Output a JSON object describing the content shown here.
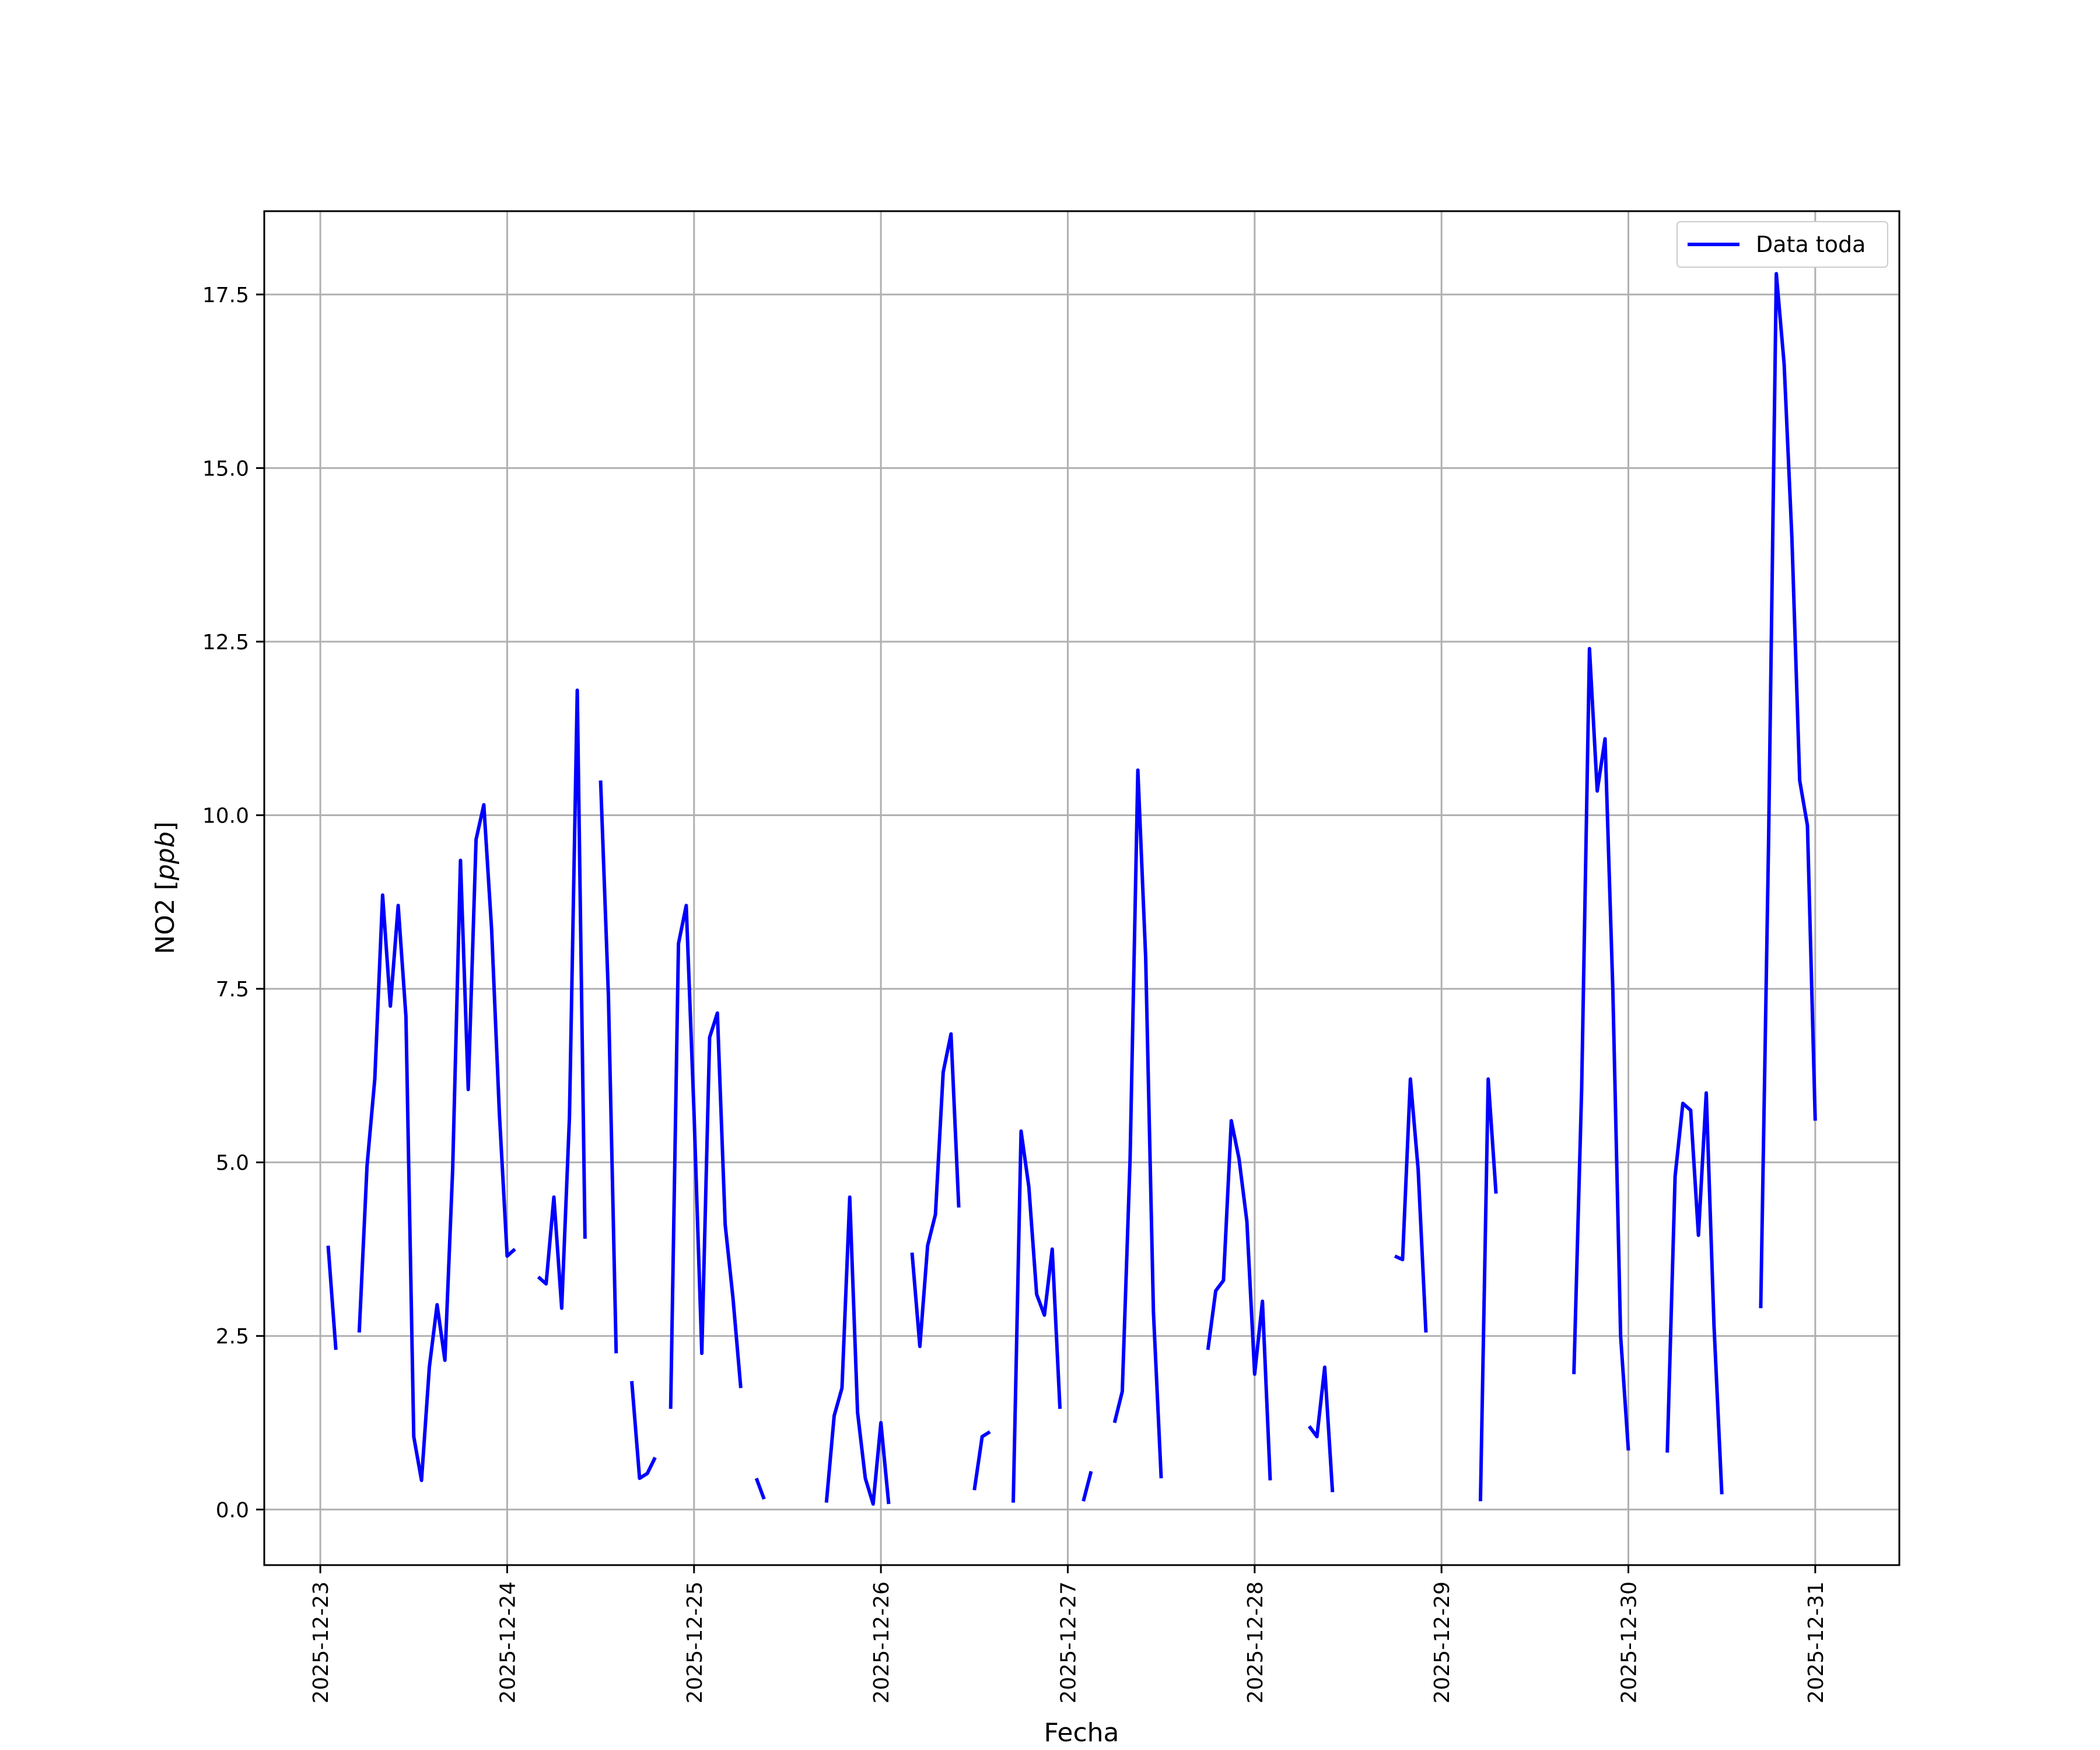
{
  "chart_data": {
    "type": "line",
    "title": "",
    "xlabel": "Fecha",
    "ylabel": "NO2 [ppb]",
    "ylabel_parts": {
      "prefix": "NO2 [",
      "unit": "ppb",
      "suffix": "]"
    },
    "ylim": [
      -0.8,
      18.7
    ],
    "xlim": [
      "2025-12-22 16:48",
      "2025-12-31 10:48"
    ],
    "grid": true,
    "legend_position": "top-right",
    "x_ticks": [
      "2025-12-23",
      "2025-12-24",
      "2025-12-25",
      "2025-12-26",
      "2025-12-27",
      "2025-12-28",
      "2025-12-29",
      "2025-12-30",
      "2025-12-31"
    ],
    "y_ticks": [
      0.0,
      2.5,
      5.0,
      7.5,
      10.0,
      12.5,
      15.0,
      17.5
    ],
    "y_tick_labels": [
      "0.0",
      "2.5",
      "5.0",
      "7.5",
      "10.0",
      "12.5",
      "15.0",
      "17.5"
    ],
    "series": [
      {
        "name": "Data toda",
        "color": "#0000ff",
        "points": [
          [
            "2025-12-23 01:00",
            3.8
          ],
          [
            "2025-12-23 02:00",
            2.3
          ],
          [
            "2025-12-23 03:00",
            null
          ],
          [
            "2025-12-23 05:00",
            2.55
          ],
          [
            "2025-12-23 06:00",
            4.95
          ],
          [
            "2025-12-23 07:00",
            6.2
          ],
          [
            "2025-12-23 08:00",
            8.85
          ],
          [
            "2025-12-23 09:00",
            7.25
          ],
          [
            "2025-12-23 10:00",
            8.7
          ],
          [
            "2025-12-23 11:00",
            7.1
          ],
          [
            "2025-12-23 12:00",
            1.05
          ],
          [
            "2025-12-23 13:00",
            0.42
          ],
          [
            "2025-12-23 14:00",
            2.05
          ],
          [
            "2025-12-23 15:00",
            2.95
          ],
          [
            "2025-12-23 16:00",
            2.15
          ],
          [
            "2025-12-23 17:00",
            4.9
          ],
          [
            "2025-12-23 18:00",
            9.35
          ],
          [
            "2025-12-23 19:00",
            6.05
          ],
          [
            "2025-12-23 20:00",
            9.65
          ],
          [
            "2025-12-23 21:00",
            10.15
          ],
          [
            "2025-12-23 22:00",
            8.35
          ],
          [
            "2025-12-23 23:00",
            5.7
          ],
          [
            "2025-12-24 00:00",
            3.65
          ],
          [
            "2025-12-24 01:00",
            3.75
          ],
          [
            "2025-12-24 02:00",
            null
          ],
          [
            "2025-12-24 04:00",
            3.35
          ],
          [
            "2025-12-24 05:00",
            3.25
          ],
          [
            "2025-12-24 06:00",
            4.5
          ],
          [
            "2025-12-24 07:00",
            2.9
          ],
          [
            "2025-12-24 08:00",
            5.65
          ],
          [
            "2025-12-24 09:00",
            11.8
          ],
          [
            "2025-12-24 10:00",
            3.9
          ],
          [
            "2025-12-24 11:00",
            null
          ],
          [
            "2025-12-24 12:00",
            10.5
          ],
          [
            "2025-12-24 13:00",
            7.4
          ],
          [
            "2025-12-24 14:00",
            2.25
          ],
          [
            "2025-12-24 15:00",
            null
          ],
          [
            "2025-12-24 16:00",
            1.85
          ],
          [
            "2025-12-24 17:00",
            0.45
          ],
          [
            "2025-12-24 18:00",
            0.52
          ],
          [
            "2025-12-24 19:00",
            0.75
          ],
          [
            "2025-12-24 20:00",
            null
          ],
          [
            "2025-12-24 21:00",
            1.45
          ],
          [
            "2025-12-24 22:00",
            8.15
          ],
          [
            "2025-12-24 23:00",
            8.7
          ],
          [
            "2025-12-25 00:00",
            5.7
          ],
          [
            "2025-12-25 01:00",
            2.25
          ],
          [
            "2025-12-25 02:00",
            6.8
          ],
          [
            "2025-12-25 03:00",
            7.15
          ],
          [
            "2025-12-25 04:00",
            4.1
          ],
          [
            "2025-12-25 05:00",
            3.05
          ],
          [
            "2025-12-25 06:00",
            1.75
          ],
          [
            "2025-12-25 07:00",
            null
          ],
          [
            "2025-12-25 08:00",
            0.45
          ],
          [
            "2025-12-25 09:00",
            0.15
          ],
          [
            "2025-12-25 10:00",
            null
          ],
          [
            "2025-12-25 17:00",
            0.1
          ],
          [
            "2025-12-25 18:00",
            1.35
          ],
          [
            "2025-12-25 19:00",
            1.75
          ],
          [
            "2025-12-25 20:00",
            4.5
          ],
          [
            "2025-12-25 21:00",
            1.4
          ],
          [
            "2025-12-25 22:00",
            0.45
          ],
          [
            "2025-12-25 23:00",
            0.08
          ],
          [
            "2025-12-26 00:00",
            1.25
          ],
          [
            "2025-12-26 01:00",
            0.08
          ],
          [
            "2025-12-26 02:00",
            null
          ],
          [
            "2025-12-26 04:00",
            3.7
          ],
          [
            "2025-12-26 05:00",
            2.35
          ],
          [
            "2025-12-26 06:00",
            3.8
          ],
          [
            "2025-12-26 07:00",
            4.25
          ],
          [
            "2025-12-26 08:00",
            6.3
          ],
          [
            "2025-12-26 09:00",
            6.85
          ],
          [
            "2025-12-26 10:00",
            4.35
          ],
          [
            "2025-12-26 11:00",
            null
          ],
          [
            "2025-12-26 12:00",
            0.28
          ],
          [
            "2025-12-26 13:00",
            1.05
          ],
          [
            "2025-12-26 14:00",
            1.12
          ],
          [
            "2025-12-26 15:00",
            null
          ],
          [
            "2025-12-26 17:00",
            0.1
          ],
          [
            "2025-12-26 18:00",
            5.45
          ],
          [
            "2025-12-26 19:00",
            4.65
          ],
          [
            "2025-12-26 20:00",
            3.1
          ],
          [
            "2025-12-26 21:00",
            2.8
          ],
          [
            "2025-12-26 22:00",
            3.75
          ],
          [
            "2025-12-26 23:00",
            1.45
          ],
          [
            "2025-12-27 00:00",
            null
          ],
          [
            "2025-12-27 02:00",
            0.12
          ],
          [
            "2025-12-27 03:00",
            0.55
          ],
          [
            "2025-12-27 04:00",
            null
          ],
          [
            "2025-12-27 06:00",
            1.25
          ],
          [
            "2025-12-27 07:00",
            1.7
          ],
          [
            "2025-12-27 08:00",
            5.05
          ],
          [
            "2025-12-27 09:00",
            10.65
          ],
          [
            "2025-12-27 10:00",
            7.95
          ],
          [
            "2025-12-27 11:00",
            2.85
          ],
          [
            "2025-12-27 12:00",
            0.45
          ],
          [
            "2025-12-27 13:00",
            null
          ],
          [
            "2025-12-27 18:00",
            2.3
          ],
          [
            "2025-12-27 19:00",
            3.15
          ],
          [
            "2025-12-27 20:00",
            3.3
          ],
          [
            "2025-12-27 21:00",
            5.6
          ],
          [
            "2025-12-27 22:00",
            5.05
          ],
          [
            "2025-12-27 23:00",
            4.15
          ],
          [
            "2025-12-28 00:00",
            1.95
          ],
          [
            "2025-12-28 01:00",
            3.0
          ],
          [
            "2025-12-28 02:00",
            0.42
          ],
          [
            "2025-12-28 03:00",
            null
          ],
          [
            "2025-12-28 07:00",
            1.2
          ],
          [
            "2025-12-28 08:00",
            1.05
          ],
          [
            "2025-12-28 09:00",
            2.05
          ],
          [
            "2025-12-28 10:00",
            0.25
          ],
          [
            "2025-12-28 11:00",
            null
          ],
          [
            "2025-12-28 18:00",
            3.65
          ],
          [
            "2025-12-28 19:00",
            3.6
          ],
          [
            "2025-12-28 20:00",
            6.2
          ],
          [
            "2025-12-28 21:00",
            4.9
          ],
          [
            "2025-12-28 22:00",
            2.55
          ],
          [
            "2025-12-28 23:00",
            null
          ],
          [
            "2025-12-29 05:00",
            0.12
          ],
          [
            "2025-12-29 06:00",
            6.2
          ],
          [
            "2025-12-29 07:00",
            4.55
          ],
          [
            "2025-12-29 08:00",
            null
          ],
          [
            "2025-12-29 17:00",
            1.95
          ],
          [
            "2025-12-29 18:00",
            6.05
          ],
          [
            "2025-12-29 19:00",
            12.4
          ],
          [
            "2025-12-29 20:00",
            10.35
          ],
          [
            "2025-12-29 21:00",
            11.1
          ],
          [
            "2025-12-29 22:00",
            7.5
          ],
          [
            "2025-12-29 23:00",
            2.5
          ],
          [
            "2025-12-30 00:00",
            0.85
          ],
          [
            "2025-12-30 01:00",
            null
          ],
          [
            "2025-12-30 05:00",
            0.82
          ],
          [
            "2025-12-30 06:00",
            4.8
          ],
          [
            "2025-12-30 07:00",
            5.85
          ],
          [
            "2025-12-30 08:00",
            5.75
          ],
          [
            "2025-12-30 09:00",
            3.95
          ],
          [
            "2025-12-30 10:00",
            6.0
          ],
          [
            "2025-12-30 11:00",
            2.65
          ],
          [
            "2025-12-30 12:00",
            0.22
          ],
          [
            "2025-12-30 13:00",
            null
          ],
          [
            "2025-12-30 17:00",
            2.9
          ],
          [
            "2025-12-30 18:00",
            9.6
          ],
          [
            "2025-12-30 19:00",
            17.8
          ],
          [
            "2025-12-30 20:00",
            16.5
          ],
          [
            "2025-12-30 21:00",
            14.0
          ],
          [
            "2025-12-30 22:00",
            10.5
          ],
          [
            "2025-12-30 23:00",
            9.85
          ],
          [
            "2025-12-31 00:00",
            5.6
          ]
        ]
      }
    ]
  }
}
